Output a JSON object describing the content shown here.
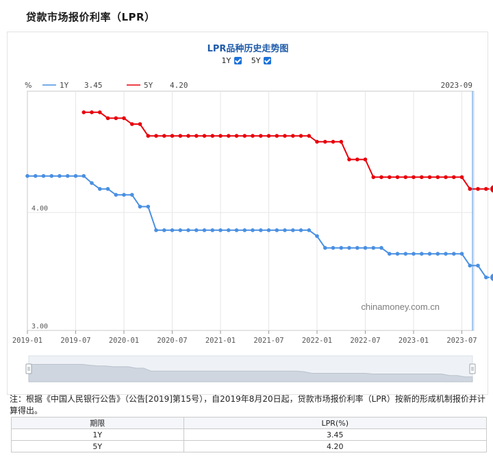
{
  "page": {
    "title": "贷款市场报价利率（LPR）"
  },
  "chart_data": {
    "type": "line",
    "title": "LPR品种历史走势图",
    "toggles": [
      {
        "label": "1Y",
        "checked": true
      },
      {
        "label": "5Y",
        "checked": true
      }
    ],
    "y_unit": "%",
    "y_tick_labels": [
      "4.00",
      "3.00"
    ],
    "ylim": [
      3.0,
      4.8
    ],
    "x_tick_labels": [
      "2019-01",
      "2019-07",
      "2020-01",
      "2020-07",
      "2021-01",
      "2021-07",
      "2022-01",
      "2022-07",
      "2023-01",
      "2023-07"
    ],
    "x_start": "2019-01",
    "current_period": "2023-09",
    "watermark": "chinamoney.com.cn",
    "series": [
      {
        "name": "1Y",
        "legend_value": "3.45",
        "color": "#4a90e2",
        "values": [
          4.31,
          4.31,
          4.31,
          4.31,
          4.31,
          4.31,
          4.31,
          4.31,
          4.25,
          4.2,
          4.2,
          4.15,
          4.15,
          4.15,
          4.05,
          4.05,
          3.85,
          3.85,
          3.85,
          3.85,
          3.85,
          3.85,
          3.85,
          3.85,
          3.85,
          3.85,
          3.85,
          3.85,
          3.85,
          3.85,
          3.85,
          3.85,
          3.85,
          3.85,
          3.85,
          3.85,
          3.8,
          3.7,
          3.7,
          3.7,
          3.7,
          3.7,
          3.7,
          3.7,
          3.7,
          3.65,
          3.65,
          3.65,
          3.65,
          3.65,
          3.65,
          3.65,
          3.65,
          3.65,
          3.65,
          3.55,
          3.55,
          3.45,
          3.45
        ]
      },
      {
        "name": "5Y",
        "legend_value": "4.20",
        "color": "#e8000b",
        "start_index": 7,
        "values": [
          4.85,
          4.85,
          4.85,
          4.8,
          4.8,
          4.8,
          4.75,
          4.75,
          4.65,
          4.65,
          4.65,
          4.65,
          4.65,
          4.65,
          4.65,
          4.65,
          4.65,
          4.65,
          4.65,
          4.65,
          4.65,
          4.65,
          4.65,
          4.65,
          4.65,
          4.65,
          4.65,
          4.65,
          4.65,
          4.6,
          4.6,
          4.6,
          4.6,
          4.45,
          4.45,
          4.45,
          4.3,
          4.3,
          4.3,
          4.3,
          4.3,
          4.3,
          4.3,
          4.3,
          4.3,
          4.3,
          4.3,
          4.3,
          4.2,
          4.2,
          4.2,
          4.2
        ]
      }
    ]
  },
  "footnote": "注：根据《中国人民银行公告》（公告[2019]第15号），自2019年8月20日起，贷款市场报价利率（LPR）按新的形成机制报价并计算得出。",
  "table": {
    "headers": [
      "期限",
      "LPR(%)"
    ],
    "rows": [
      {
        "term": "1Y",
        "rate": "3.45"
      },
      {
        "term": "5Y",
        "rate": "4.20"
      }
    ]
  }
}
